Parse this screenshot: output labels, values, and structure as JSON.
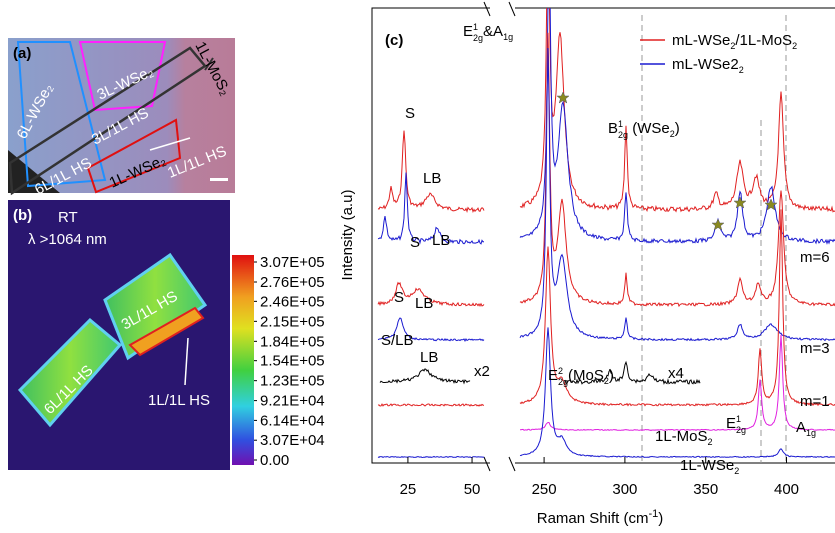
{
  "panel_a": {
    "label": "(a)",
    "regions": [
      "6L-WSe₂",
      "3L-WSe₂",
      "1L-MoS₂",
      "3L/1L HS",
      "6L/1L HS",
      "1L-WSe₂",
      "1L/1L HS"
    ]
  },
  "panel_b": {
    "label": "(b)",
    "condition": "RT",
    "wavelength": "λ >1064 nm",
    "regions": [
      "3L/1L HS",
      "6L/1L HS",
      "1L/1L HS"
    ],
    "colorbar_ticks": [
      {
        "value": 307000,
        "label": "3.07E+05"
      },
      {
        "value": 276000,
        "label": "2.76E+05"
      },
      {
        "value": 246000,
        "label": "2.46E+05"
      },
      {
        "value": 215000,
        "label": "2.15E+05"
      },
      {
        "value": 184000,
        "label": "1.84E+05"
      },
      {
        "value": 154000,
        "label": "1.54E+05"
      },
      {
        "value": 123000,
        "label": "1.23E+05"
      },
      {
        "value": 92100,
        "label": "9.21E+04"
      },
      {
        "value": 61400,
        "label": "6.14E+04"
      },
      {
        "value": 30700,
        "label": "3.07E+04"
      },
      {
        "value": 0,
        "label": "0.00"
      }
    ]
  },
  "panel_c": {
    "label": "(c)",
    "ylabel": "Intensity (a.u)",
    "xlabel": {
      "text": "Raman Shift (cm",
      "sup": "-1",
      "after": ")"
    },
    "xlim_left": [
      11,
      57
    ],
    "xticks_left": [
      25,
      50
    ],
    "xlim_right": [
      232,
      430
    ],
    "xticks_right": [
      250,
      300,
      350,
      400
    ],
    "legend": [
      {
        "name": "mL-WSe",
        "sub": "2",
        "after": "/1L-MoS",
        "sub2": "2",
        "color": "#e02020"
      },
      {
        "name": "mL-WSe2",
        "sub": "2",
        "color": "#1a1ad0"
      }
    ],
    "peak_e_a": {
      "e": "E",
      "e_sup": "1",
      "e_sub": "2g",
      "a": "&A",
      "a_sub": "1g"
    },
    "peak_b": {
      "b": "B",
      "sup": "1",
      "sub": "2g",
      "after": " (WSe",
      "after_sub": "2",
      "close": ")"
    },
    "peak_e_mos2": {
      "e": "E",
      "sup": "2",
      "sub": "2g",
      "after": "(MoS",
      "after_sub": "2",
      "close": ")"
    },
    "peak_e12g": {
      "e": "E",
      "sup": "1",
      "sub": "2g"
    },
    "peak_a1g": {
      "a": "A",
      "sub": "1g"
    },
    "annotations": [
      "S",
      "LB",
      "S",
      "LB",
      "S",
      "LB",
      "S/LB",
      "LB",
      "x2",
      "x4",
      "m=6",
      "m=3",
      "m=1"
    ],
    "mos2_label": {
      "text": "1L-MoS",
      "sub": "2"
    },
    "wse2_label": {
      "text": "1L-WSe",
      "sub": "2"
    }
  }
}
